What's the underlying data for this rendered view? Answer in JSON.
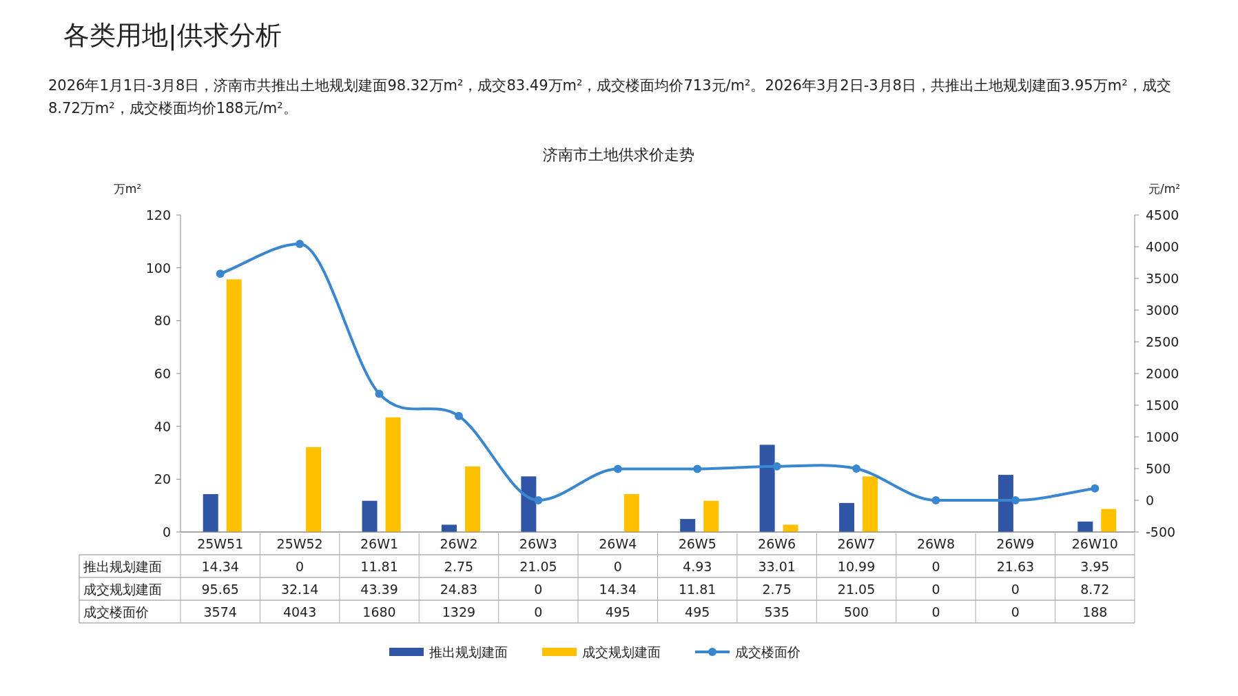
{
  "chart_data": {
    "type": "bar",
    "title": "各类用地|供求分析",
    "subtitle": "济南市土地供求价走势",
    "annotations": [
      "2026年1月1日-3月8日，济南市共推出土地规划建面98.32万m²，成交83.49万m²，成交楼面均价713元/m²。2026年3月2日-3月8日，共推出土地规划建面3.95万m²，成交8.72万m²，成交楼面均价188元/m²。"
    ],
    "ylabel": "万m²",
    "y2label": "元/m²",
    "categories": [
      "25W51",
      "25W52",
      "26W1",
      "26W2",
      "26W3",
      "26W4",
      "26W5",
      "26W6",
      "26W7",
      "26W8",
      "26W9",
      "26W10"
    ],
    "series": [
      {
        "name": "推出规划建面",
        "color": "#2f55a4",
        "values": [
          14.34,
          0,
          11.81,
          2.75,
          21.05,
          0,
          4.93,
          33.01,
          10.99,
          0,
          21.63,
          3.95
        ]
      },
      {
        "name": "成交规划建面",
        "color": "#ffc000",
        "values": [
          95.65,
          32.14,
          43.39,
          24.83,
          0,
          14.34,
          11.81,
          2.75,
          21.05,
          0,
          0,
          8.72
        ]
      },
      {
        "name": "成交楼面价",
        "type": "line",
        "axis": "y2",
        "marker": "circle",
        "color": "#3a87d0",
        "values": [
          3574,
          4043,
          1680,
          1329,
          0,
          495,
          495,
          535,
          500,
          0,
          0,
          188
        ]
      }
    ],
    "ylim": [
      0,
      120
    ],
    "yticks": [
      0,
      20,
      40,
      60,
      80,
      100,
      120
    ],
    "y2lim": [
      -500,
      4500
    ],
    "y2ticks": [
      -500,
      0,
      500,
      1000,
      1500,
      2000,
      2500,
      3000,
      3500,
      4000,
      4500
    ],
    "legend": "bottom",
    "data_labels": true
  }
}
